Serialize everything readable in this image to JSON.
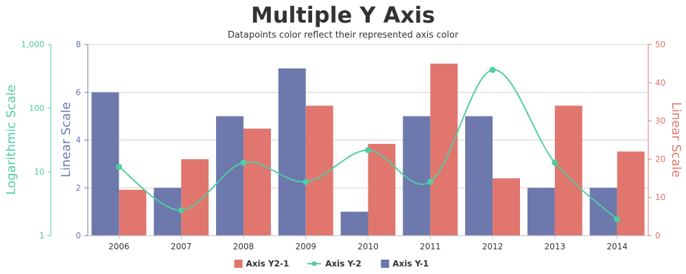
{
  "chart_data": {
    "type": "bar",
    "title": "Multiple Y Axis",
    "subtitle": "Datapoints color reflect their represented axis color",
    "categories": [
      "2006",
      "2007",
      "2008",
      "2009",
      "2010",
      "2011",
      "2012",
      "2013",
      "2014"
    ],
    "series": [
      {
        "name": "Axis Y-1",
        "type": "bar",
        "axis": "y1",
        "color": "#6D78AD",
        "values": [
          6,
          2,
          5,
          7,
          1,
          5,
          5,
          2,
          2
        ]
      },
      {
        "name": "Axis Y2-1",
        "type": "bar",
        "axis": "y2",
        "color": "#E0766E",
        "values": [
          12,
          20,
          28,
          34,
          24,
          45,
          15,
          34,
          22
        ]
      },
      {
        "name": "Axis Y-2",
        "type": "spline",
        "axis": "log",
        "color": "#51CDA0",
        "values": [
          12,
          2.5,
          14,
          7,
          22,
          7,
          400,
          14,
          1.8
        ]
      }
    ],
    "axes": {
      "y1": {
        "title": "Linear Scale",
        "min": 0,
        "max": 8,
        "ticks": [
          0,
          2,
          4,
          6,
          8
        ],
        "tick_labels": [
          "0",
          "2",
          "4",
          "6",
          "8"
        ],
        "color": "#6D78AD"
      },
      "y2": {
        "title": "Linear Scale",
        "min": 0,
        "max": 50,
        "ticks": [
          0,
          10,
          20,
          30,
          40,
          50
        ],
        "tick_labels": [
          "0",
          "10",
          "20",
          "30",
          "40",
          "50"
        ],
        "color": "#E0766E"
      },
      "log": {
        "title": "Logarithmic Scale",
        "scale": "log",
        "min": 1,
        "max": 1000,
        "ticks": [
          1,
          10,
          100,
          1000
        ],
        "tick_labels": [
          "1",
          "10",
          "100",
          "1,000"
        ],
        "color": "#51CDA0"
      }
    },
    "grid": true,
    "legend": {
      "position": "bottom",
      "items": [
        {
          "label": "Axis Y2-1",
          "color": "#E0766E",
          "marker": "square"
        },
        {
          "label": "Axis Y-2",
          "color": "#51CDA0",
          "marker": "line-dot"
        },
        {
          "label": "Axis Y-1",
          "color": "#6D78AD",
          "marker": "square"
        }
      ]
    }
  }
}
